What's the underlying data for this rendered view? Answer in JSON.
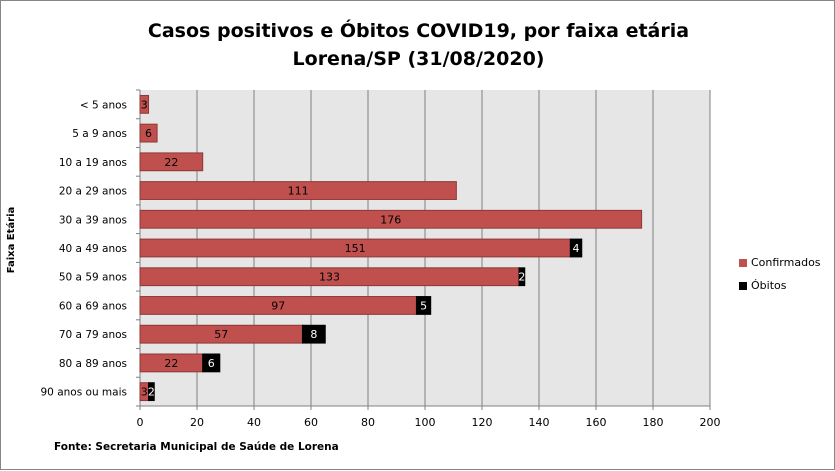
{
  "chart_data": {
    "type": "bar",
    "orientation": "horizontal",
    "stacked": true,
    "title_lines": [
      "Casos positivos e Óbitos COVID19, por faixa etária",
      "Lorena/SP (31/08/2020)"
    ],
    "ylabel": "Faixa Etária",
    "xlabel": "",
    "categories": [
      "< 5 anos",
      "5 a 9 anos",
      "10 a 19 anos",
      "20 a 29 anos",
      "30 a 39 anos",
      "40 a 49 anos",
      "50 a 59 anos",
      "60 a 69 anos",
      "70 a 79 anos",
      "80 a 89 anos",
      "90 anos ou mais"
    ],
    "series": [
      {
        "name": "Confirmados",
        "color": "#c0504d",
        "values": [
          3,
          6,
          22,
          111,
          176,
          151,
          133,
          97,
          57,
          22,
          3
        ]
      },
      {
        "name": "Óbitos",
        "color": "#000000",
        "values": [
          null,
          null,
          null,
          null,
          null,
          4,
          2,
          5,
          8,
          6,
          2
        ]
      }
    ],
    "xlim": [
      0,
      200
    ],
    "xticks": [
      0,
      20,
      40,
      60,
      80,
      100,
      120,
      140,
      160,
      180,
      200
    ],
    "grid": true,
    "legend_position": "right",
    "source": "Fonte: Secretaria Municipal  de Saúde de Lorena"
  }
}
